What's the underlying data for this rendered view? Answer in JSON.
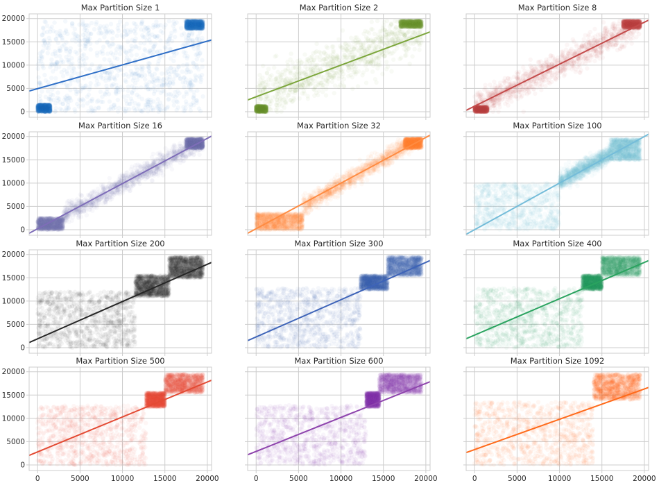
{
  "figure": {
    "background": "#ffffff",
    "axes_background": "#ffffff",
    "grid_color": "#cccccc",
    "spine_color": "#cccccc",
    "tick_label_color": "#262626",
    "title_color": "#262626"
  },
  "chart_data": [
    {
      "type": "scatter",
      "title": "Max Partition Size 1",
      "color": "#2f6fc7",
      "xlim": [
        -1000,
        20500
      ],
      "ylim": [
        -1200,
        21000
      ],
      "xticks": [
        0,
        5000,
        10000,
        15000,
        20000
      ],
      "yticks": [
        0,
        5000,
        10000,
        15000,
        20000
      ],
      "grid": true,
      "point_alpha": 0.05,
      "regression_line": {
        "slope": 0.51,
        "intercept": 4950
      },
      "point_clusters": [
        {
          "shape": "rect",
          "x": [
            0,
            19500
          ],
          "y": [
            0,
            19500
          ],
          "density": "medium"
        },
        {
          "shape": "rect",
          "x": [
            0,
            1500
          ],
          "y": [
            0,
            1500
          ],
          "density": "dense"
        },
        {
          "shape": "rect",
          "x": [
            17500,
            19500
          ],
          "y": [
            17800,
            19500
          ],
          "density": "dense"
        }
      ]
    },
    {
      "type": "scatter",
      "title": "Max Partition Size 2",
      "color": "#7ca63c",
      "xlim": [
        -1000,
        20500
      ],
      "ylim": [
        -1200,
        21000
      ],
      "xticks": [
        0,
        5000,
        10000,
        15000,
        20000
      ],
      "yticks": [
        0,
        5000,
        10000,
        15000,
        20000
      ],
      "grid": true,
      "point_alpha": 0.05,
      "regression_line": {
        "slope": 0.68,
        "intercept": 3200
      },
      "point_clusters": [
        {
          "shape": "band",
          "x": [
            0,
            19500
          ],
          "y": [
            0,
            19500
          ],
          "slope": 0.75,
          "intercept": 3000,
          "spread": 5500,
          "density": "medium"
        },
        {
          "shape": "rect",
          "x": [
            0,
            1200
          ],
          "y": [
            0,
            1200
          ],
          "density": "dense"
        },
        {
          "shape": "rect",
          "x": [
            17000,
            19500
          ],
          "y": [
            18200,
            19500
          ],
          "density": "dense"
        }
      ]
    },
    {
      "type": "scatter",
      "title": "Max Partition Size 8",
      "color": "#c44b4b",
      "xlim": [
        -1000,
        20500
      ],
      "ylim": [
        -1200,
        21000
      ],
      "xticks": [
        0,
        5000,
        10000,
        15000,
        20000
      ],
      "yticks": [
        0,
        5000,
        10000,
        15000,
        20000
      ],
      "grid": true,
      "point_alpha": 0.05,
      "regression_line": {
        "slope": 0.9,
        "intercept": 1200
      },
      "point_clusters": [
        {
          "shape": "band",
          "x": [
            0,
            19500
          ],
          "y": [
            0,
            19500
          ],
          "slope": 0.92,
          "intercept": 1000,
          "spread": 3200,
          "density": "dense"
        },
        {
          "shape": "rect",
          "x": [
            0,
            1500
          ],
          "y": [
            0,
            1000
          ],
          "density": "dense"
        },
        {
          "shape": "rect",
          "x": [
            17500,
            19500
          ],
          "y": [
            18000,
            19500
          ],
          "density": "dense"
        }
      ]
    },
    {
      "type": "scatter",
      "title": "Max Partition Size 16",
      "color": "#7e6db8",
      "xlim": [
        -1000,
        20500
      ],
      "ylim": [
        -1200,
        21000
      ],
      "xticks": [
        0,
        5000,
        10000,
        15000,
        20000
      ],
      "yticks": [
        0,
        5000,
        10000,
        15000,
        20000
      ],
      "grid": true,
      "point_alpha": 0.05,
      "regression_line": {
        "slope": 0.97,
        "intercept": 200
      },
      "point_clusters": [
        {
          "shape": "band",
          "x": [
            3000,
            19500
          ],
          "y": [
            0,
            19500
          ],
          "slope": 1.0,
          "intercept": -200,
          "spread": 2200,
          "density": "dense"
        },
        {
          "shape": "rect",
          "x": [
            0,
            3000
          ],
          "y": [
            0,
            2500
          ],
          "density": "dense"
        },
        {
          "shape": "rect",
          "x": [
            17500,
            19500
          ],
          "y": [
            17500,
            19500
          ],
          "density": "dense"
        }
      ]
    },
    {
      "type": "scatter",
      "title": "Max Partition Size 32",
      "color": "#ff8c42",
      "xlim": [
        -1000,
        20500
      ],
      "ylim": [
        -1200,
        21000
      ],
      "xticks": [
        0,
        5000,
        10000,
        15000,
        20000
      ],
      "yticks": [
        0,
        5000,
        10000,
        15000,
        20000
      ],
      "grid": true,
      "point_alpha": 0.05,
      "regression_line": {
        "slope": 0.98,
        "intercept": 200
      },
      "point_clusters": [
        {
          "shape": "rect",
          "x": [
            0,
            5500
          ],
          "y": [
            0,
            3500
          ],
          "density": "dense"
        },
        {
          "shape": "band",
          "x": [
            5500,
            19500
          ],
          "y": [
            3500,
            19500
          ],
          "slope": 1.05,
          "intercept": -700,
          "spread": 2000,
          "density": "dense"
        },
        {
          "shape": "rect",
          "x": [
            17500,
            19500
          ],
          "y": [
            17500,
            19500
          ],
          "density": "dense"
        }
      ]
    },
    {
      "type": "scatter",
      "title": "Max Partition Size 100",
      "color": "#74bcd9",
      "xlim": [
        -1000,
        20500
      ],
      "ylim": [
        -1200,
        21000
      ],
      "xticks": [
        0,
        5000,
        10000,
        15000,
        20000
      ],
      "yticks": [
        0,
        5000,
        10000,
        15000,
        20000
      ],
      "grid": true,
      "point_alpha": 0.05,
      "regression_line": {
        "slope": 1.0,
        "intercept": 0
      },
      "point_clusters": [
        {
          "shape": "rect",
          "x": [
            0,
            10000
          ],
          "y": [
            0,
            10000
          ],
          "density": "medium"
        },
        {
          "shape": "band",
          "x": [
            10000,
            16000
          ],
          "y": [
            9000,
            19500
          ],
          "slope": 1.0,
          "intercept": 300,
          "spread": 2000,
          "density": "dense"
        },
        {
          "shape": "rect",
          "x": [
            16000,
            19500
          ],
          "y": [
            15000,
            19500
          ],
          "density": "dense"
        }
      ]
    },
    {
      "type": "scatter",
      "title": "Max Partition Size 200",
      "color": "#262626",
      "xlim": [
        -1000,
        20500
      ],
      "ylim": [
        -1200,
        21000
      ],
      "xticks": [
        0,
        5000,
        10000,
        15000,
        20000
      ],
      "yticks": [
        0,
        5000,
        10000,
        15000,
        20000
      ],
      "grid": true,
      "point_alpha": 0.05,
      "regression_line": {
        "slope": 0.8,
        "intercept": 1900
      },
      "point_clusters": [
        {
          "shape": "rect",
          "x": [
            0,
            11500
          ],
          "y": [
            0,
            12000
          ],
          "density": "medium"
        },
        {
          "shape": "rect",
          "x": [
            11500,
            15500
          ],
          "y": [
            11000,
            15500
          ],
          "density": "dense"
        },
        {
          "shape": "rect",
          "x": [
            15500,
            19500
          ],
          "y": [
            15000,
            19500
          ],
          "density": "dense"
        }
      ]
    },
    {
      "type": "scatter",
      "title": "Max Partition Size 300",
      "color": "#3d63b8",
      "xlim": [
        -1000,
        20500
      ],
      "ylim": [
        -1200,
        21000
      ],
      "xticks": [
        0,
        5000,
        10000,
        15000,
        20000
      ],
      "yticks": [
        0,
        5000,
        10000,
        15000,
        20000
      ],
      "grid": true,
      "point_alpha": 0.05,
      "regression_line": {
        "slope": 0.8,
        "intercept": 2300
      },
      "point_clusters": [
        {
          "shape": "rect",
          "x": [
            0,
            12300
          ],
          "y": [
            0,
            12800
          ],
          "density": "medium"
        },
        {
          "shape": "rect",
          "x": [
            12300,
            15500
          ],
          "y": [
            12500,
            15500
          ],
          "density": "dense"
        },
        {
          "shape": "rect",
          "x": [
            15500,
            19500
          ],
          "y": [
            15500,
            19500
          ],
          "density": "dense"
        }
      ]
    },
    {
      "type": "scatter",
      "title": "Max Partition Size 400",
      "color": "#2aa35f",
      "xlim": [
        -1000,
        20500
      ],
      "ylim": [
        -1200,
        21000
      ],
      "xticks": [
        0,
        5000,
        10000,
        15000,
        20000
      ],
      "yticks": [
        0,
        5000,
        10000,
        15000,
        20000
      ],
      "grid": true,
      "point_alpha": 0.05,
      "regression_line": {
        "slope": 0.78,
        "intercept": 2700
      },
      "point_clusters": [
        {
          "shape": "rect",
          "x": [
            0,
            12700
          ],
          "y": [
            0,
            12800
          ],
          "density": "medium"
        },
        {
          "shape": "rect",
          "x": [
            12700,
            15000
          ],
          "y": [
            12500,
            15500
          ],
          "density": "dense"
        },
        {
          "shape": "rect",
          "x": [
            15000,
            19500
          ],
          "y": [
            15500,
            19500
          ],
          "density": "dense"
        }
      ]
    },
    {
      "type": "scatter",
      "title": "Max Partition Size 500",
      "color": "#e34a33",
      "xlim": [
        -1000,
        20500
      ],
      "ylim": [
        -1200,
        21000
      ],
      "xticks": [
        0,
        5000,
        10000,
        15000,
        20000
      ],
      "yticks": [
        0,
        5000,
        10000,
        15000,
        20000
      ],
      "grid": true,
      "point_alpha": 0.05,
      "regression_line": {
        "slope": 0.75,
        "intercept": 2800
      },
      "point_clusters": [
        {
          "shape": "rect",
          "x": [
            0,
            12800
          ],
          "y": [
            0,
            12800
          ],
          "density": "medium"
        },
        {
          "shape": "rect",
          "x": [
            12800,
            15000
          ],
          "y": [
            12500,
            15500
          ],
          "density": "dense"
        },
        {
          "shape": "rect",
          "x": [
            15000,
            19500
          ],
          "y": [
            15500,
            19500
          ],
          "density": "dense"
        }
      ]
    },
    {
      "type": "scatter",
      "title": "Max Partition Size 600",
      "color": "#8e44ad",
      "xlim": [
        -1000,
        20500
      ],
      "ylim": [
        -1200,
        21000
      ],
      "xticks": [
        0,
        5000,
        10000,
        15000,
        20000
      ],
      "yticks": [
        0,
        5000,
        10000,
        15000,
        20000
      ],
      "grid": true,
      "point_alpha": 0.05,
      "regression_line": {
        "slope": 0.73,
        "intercept": 2900
      },
      "point_clusters": [
        {
          "shape": "rect",
          "x": [
            0,
            13000
          ],
          "y": [
            0,
            12800
          ],
          "density": "medium"
        },
        {
          "shape": "rect",
          "x": [
            13000,
            14500
          ],
          "y": [
            12500,
            15500
          ],
          "density": "dense"
        },
        {
          "shape": "rect",
          "x": [
            14500,
            19500
          ],
          "y": [
            15500,
            19500
          ],
          "density": "dense"
        }
      ]
    },
    {
      "type": "scatter",
      "title": "Max Partition Size 1092",
      "color": "#ff6a1a",
      "xlim": [
        -1000,
        20500
      ],
      "ylim": [
        -1200,
        21000
      ],
      "xticks": [
        0,
        5000,
        10000,
        15000,
        20000
      ],
      "yticks": [
        0,
        5000,
        10000,
        15000,
        20000
      ],
      "grid": true,
      "point_alpha": 0.05,
      "regression_line": {
        "slope": 0.65,
        "intercept": 3300
      },
      "point_clusters": [
        {
          "shape": "rect",
          "x": [
            0,
            14000
          ],
          "y": [
            0,
            13500
          ],
          "density": "medium"
        },
        {
          "shape": "rect",
          "x": [
            14000,
            19500
          ],
          "y": [
            14000,
            19500
          ],
          "density": "dense"
        }
      ]
    }
  ]
}
